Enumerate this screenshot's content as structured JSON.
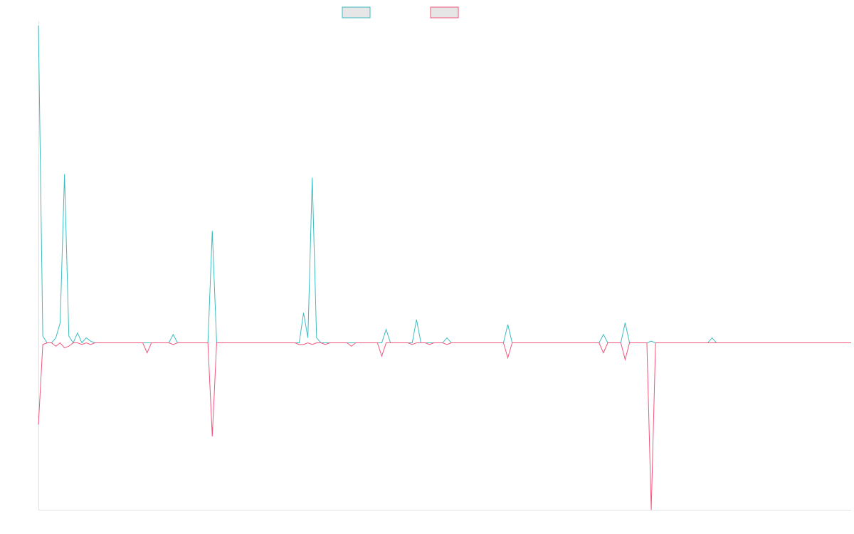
{
  "colors": {
    "background": "#ffffff",
    "axis": "#e3e3e3",
    "legend_fill": "#e6e6e6"
  },
  "chart_data": {
    "type": "line",
    "title": "",
    "xlabel": "",
    "ylabel": "",
    "grid": false,
    "legend_position": "top-center",
    "ylim": [
      -100,
      190
    ],
    "x_count": 188,
    "series": [
      {
        "color": "#3cbcc0",
        "values": [
          190,
          4,
          0,
          0,
          3,
          12,
          101,
          4,
          0,
          6,
          0,
          3,
          1,
          0,
          0,
          0,
          0,
          0,
          0,
          0,
          0,
          0,
          0,
          0,
          0,
          0,
          0,
          0,
          0,
          0,
          0,
          5,
          0,
          0,
          0,
          0,
          0,
          0,
          0,
          0,
          67,
          0,
          0,
          0,
          0,
          0,
          0,
          0,
          0,
          0,
          0,
          0,
          0,
          0,
          0,
          0,
          0,
          0,
          0,
          0,
          0,
          18,
          3,
          99,
          3,
          0,
          0,
          0,
          0,
          0,
          0,
          0,
          0,
          0,
          0,
          0,
          0,
          0,
          0,
          0,
          8,
          0,
          0,
          0,
          0,
          0,
          0,
          14,
          0,
          0,
          0,
          0,
          0,
          0,
          3,
          0,
          0,
          0,
          0,
          0,
          0,
          0,
          0,
          0,
          0,
          0,
          0,
          0,
          11,
          0,
          0,
          0,
          0,
          0,
          0,
          0,
          0,
          0,
          0,
          0,
          0,
          0,
          0,
          0,
          0,
          0,
          0,
          0,
          0,
          0,
          5,
          0,
          0,
          0,
          0,
          12,
          0,
          0,
          0,
          0,
          0,
          1,
          0,
          0,
          0,
          0,
          0,
          0,
          0,
          0,
          0,
          0,
          0,
          0,
          0,
          3,
          0,
          0,
          0,
          0,
          0,
          0,
          0,
          0,
          0,
          0,
          0,
          0,
          0,
          0,
          0,
          0,
          0,
          0,
          0,
          0,
          0,
          0,
          0,
          0,
          0,
          0,
          0,
          0,
          0,
          0,
          0,
          0
        ]
      },
      {
        "color": "#f2557b",
        "values": [
          -49,
          -1,
          0,
          0,
          -2,
          0,
          -3,
          -2,
          0,
          0,
          -1,
          0,
          -1,
          0,
          0,
          0,
          0,
          0,
          0,
          0,
          0,
          0,
          0,
          0,
          0,
          -6,
          0,
          0,
          0,
          0,
          0,
          -1,
          0,
          0,
          0,
          0,
          0,
          0,
          0,
          0,
          -56,
          0,
          0,
          0,
          0,
          0,
          0,
          0,
          0,
          0,
          0,
          0,
          0,
          0,
          0,
          0,
          0,
          0,
          0,
          0,
          -1,
          -1,
          0,
          -1,
          0,
          0,
          -1,
          0,
          0,
          0,
          0,
          0,
          -2,
          0,
          0,
          0,
          0,
          0,
          0,
          -8,
          0,
          0,
          0,
          0,
          0,
          0,
          -1,
          0,
          0,
          0,
          -1,
          0,
          0,
          0,
          -1,
          0,
          0,
          0,
          0,
          0,
          0,
          0,
          0,
          0,
          0,
          0,
          0,
          0,
          -9,
          0,
          0,
          0,
          0,
          0,
          0,
          0,
          0,
          0,
          0,
          0,
          0,
          0,
          0,
          0,
          0,
          0,
          0,
          0,
          0,
          0,
          -6,
          0,
          0,
          0,
          0,
          -10,
          0,
          0,
          0,
          0,
          0,
          -100,
          0,
          0,
          0,
          0,
          0,
          0,
          0,
          0,
          0,
          0,
          0,
          0,
          0,
          0,
          0,
          0,
          0,
          0,
          0,
          0,
          0,
          0,
          0,
          0,
          0,
          0,
          0,
          0,
          0,
          0,
          0,
          0,
          0,
          0,
          0,
          0,
          0,
          0,
          0,
          0,
          0,
          0,
          0,
          0,
          0,
          0
        ]
      }
    ]
  }
}
